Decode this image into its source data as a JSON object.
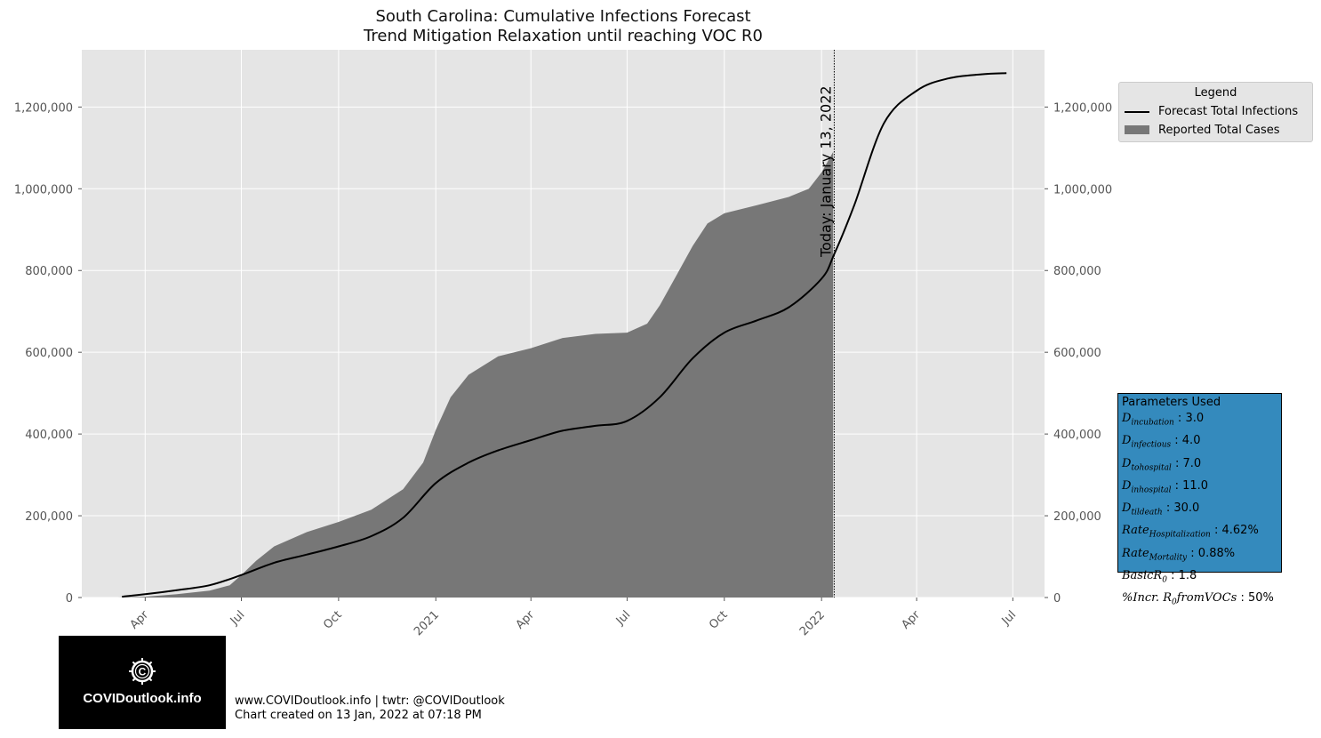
{
  "chart_data": {
    "type": "area",
    "title": [
      "South Carolina: Cumulative Infections Forecast",
      "Trend Mitigation Relaxation until reaching VOC R0"
    ],
    "xlabel": "",
    "ylabel": "",
    "ylim": [
      0,
      1340000
    ],
    "xlim": [
      "2020-02-01",
      "2022-07-31"
    ],
    "x_tick_labels": [
      {
        "date": "2020-04-01",
        "label": "Apr"
      },
      {
        "date": "2020-07-01",
        "label": "Jul"
      },
      {
        "date": "2020-10-01",
        "label": "Oct"
      },
      {
        "date": "2021-01-01",
        "label": "2021"
      },
      {
        "date": "2021-04-01",
        "label": "Apr"
      },
      {
        "date": "2021-07-01",
        "label": "Jul"
      },
      {
        "date": "2021-10-01",
        "label": "Oct"
      },
      {
        "date": "2022-01-01",
        "label": "2022"
      },
      {
        "date": "2022-04-01",
        "label": "Apr"
      },
      {
        "date": "2022-07-01",
        "label": "Jul"
      }
    ],
    "y_ticks": [
      0,
      200000,
      400000,
      600000,
      800000,
      1000000,
      1200000
    ],
    "y_tick_labels": [
      "0",
      "200,000",
      "400,000",
      "600,000",
      "800,000",
      "1,000,000",
      "1,200,000"
    ],
    "grid": true,
    "today": {
      "date": "2022-01-13",
      "label": "Today: January 13, 2022"
    },
    "series": [
      {
        "name": "Reported Total Cases",
        "kind": "area",
        "color": "#777777",
        "points": [
          [
            "2020-03-06",
            0
          ],
          [
            "2020-04-01",
            2000
          ],
          [
            "2020-05-01",
            8000
          ],
          [
            "2020-06-01",
            17000
          ],
          [
            "2020-06-20",
            30000
          ],
          [
            "2020-07-01",
            55000
          ],
          [
            "2020-07-15",
            90000
          ],
          [
            "2020-08-01",
            125000
          ],
          [
            "2020-09-01",
            160000
          ],
          [
            "2020-10-01",
            185000
          ],
          [
            "2020-11-01",
            215000
          ],
          [
            "2020-12-01",
            265000
          ],
          [
            "2020-12-20",
            330000
          ],
          [
            "2021-01-01",
            410000
          ],
          [
            "2021-01-15",
            490000
          ],
          [
            "2021-02-01",
            545000
          ],
          [
            "2021-03-01",
            590000
          ],
          [
            "2021-04-01",
            610000
          ],
          [
            "2021-05-01",
            635000
          ],
          [
            "2021-06-01",
            645000
          ],
          [
            "2021-07-01",
            648000
          ],
          [
            "2021-07-20",
            670000
          ],
          [
            "2021-08-01",
            715000
          ],
          [
            "2021-08-15",
            780000
          ],
          [
            "2021-09-01",
            860000
          ],
          [
            "2021-09-15",
            915000
          ],
          [
            "2021-10-01",
            940000
          ],
          [
            "2021-11-01",
            960000
          ],
          [
            "2021-12-01",
            980000
          ],
          [
            "2021-12-20",
            1000000
          ],
          [
            "2022-01-01",
            1040000
          ],
          [
            "2022-01-12",
            1090000
          ]
        ]
      },
      {
        "name": "Forecast Total Infections",
        "kind": "line",
        "color": "#000000",
        "points": [
          [
            "2020-03-10",
            2000
          ],
          [
            "2020-04-01",
            8000
          ],
          [
            "2020-05-01",
            18000
          ],
          [
            "2020-06-01",
            30000
          ],
          [
            "2020-07-01",
            55000
          ],
          [
            "2020-08-01",
            85000
          ],
          [
            "2020-09-01",
            105000
          ],
          [
            "2020-10-01",
            125000
          ],
          [
            "2020-11-01",
            150000
          ],
          [
            "2020-12-01",
            195000
          ],
          [
            "2021-01-01",
            280000
          ],
          [
            "2021-02-01",
            330000
          ],
          [
            "2021-03-01",
            360000
          ],
          [
            "2021-04-01",
            385000
          ],
          [
            "2021-05-01",
            408000
          ],
          [
            "2021-06-01",
            420000
          ],
          [
            "2021-07-01",
            432000
          ],
          [
            "2021-08-01",
            490000
          ],
          [
            "2021-09-01",
            585000
          ],
          [
            "2021-10-01",
            648000
          ],
          [
            "2021-11-01",
            678000
          ],
          [
            "2021-12-01",
            710000
          ],
          [
            "2022-01-01",
            780000
          ],
          [
            "2022-01-13",
            840000
          ],
          [
            "2022-02-01",
            960000
          ],
          [
            "2022-03-01",
            1160000
          ],
          [
            "2022-04-01",
            1240000
          ],
          [
            "2022-05-01",
            1270000
          ],
          [
            "2022-06-01",
            1280000
          ],
          [
            "2022-06-25",
            1283000
          ]
        ]
      }
    ]
  },
  "legend": {
    "title": "Legend",
    "items": [
      {
        "label": "Forecast Total Infections",
        "kind": "line",
        "color": "#000000"
      },
      {
        "label": "Reported Total Cases",
        "kind": "patch",
        "color": "#777777"
      }
    ]
  },
  "params": {
    "title": "Parameters Used",
    "box_color": "#348abd",
    "rows": [
      {
        "sym": "D",
        "sub": "incubation",
        "value": "3.0"
      },
      {
        "sym": "D",
        "sub": "infectious",
        "value": "4.0"
      },
      {
        "sym": "D",
        "sub": "tohospital",
        "value": "7.0"
      },
      {
        "sym": "D",
        "sub": "inhospital",
        "value": "11.0"
      },
      {
        "sym": "D",
        "sub": "tildeath",
        "value": "30.0"
      },
      {
        "sym": "Rate",
        "sub": "Hospitalization",
        "value": "4.62%"
      },
      {
        "sym": "Rate",
        "sub": "Mortality",
        "value": "0.88%"
      },
      {
        "sym": "BasicR",
        "sub": "0",
        "value": "1.8"
      },
      {
        "sym": "%Incr. R",
        "sub": "0",
        "suffix": "fromVOCs",
        "value": "50%"
      }
    ]
  },
  "logo": {
    "text": "COVIDoutlook.info",
    "icon": "covid-virus-icon"
  },
  "footer": {
    "line1": "www.COVIDoutlook.info | twtr: @COVIDoutlook",
    "line2": "Chart created on 13 Jan, 2022 at 07:18 PM"
  }
}
